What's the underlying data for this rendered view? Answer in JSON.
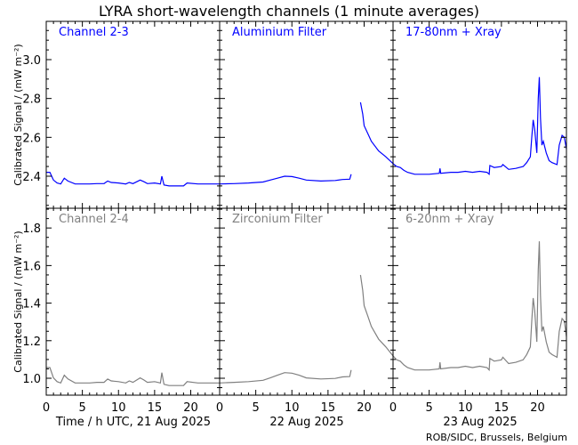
{
  "chart_data": {
    "type": "line",
    "title": "LYRA short-wavelength channels (1 minute averages)",
    "ylabel": "Calibrated Signal / (mW m⁻²)",
    "x_labels": [
      "Time / h UTC, 21 Aug 2025",
      "22 Aug 2025",
      "23 Aug 2025"
    ],
    "x_tick_labels": [
      "0",
      "5",
      "10",
      "15",
      "20"
    ],
    "x_range_hours": [
      0,
      72
    ],
    "credit": "ROB/SIDC, Brussels, Belgium",
    "colors": {
      "top": "#0000ff",
      "bottom": "#808080"
    },
    "rows": [
      {
        "panel_labels": [
          "Channel 2-3",
          "Aluminium Filter",
          "17-80nm + Xray"
        ],
        "color": "#0000ff",
        "ylim": [
          2.235,
          3.197
        ],
        "y_ticks": [
          "2.4",
          "2.6",
          "2.8",
          "3.0"
        ],
        "y_tick_values": [
          2.4,
          2.6,
          2.8,
          3.0
        ]
      },
      {
        "panel_labels": [
          "Channel 2-4",
          "Zirconium Filter",
          "6-20nm + Xray"
        ],
        "color": "#808080",
        "ylim": [
          0.91,
          1.905
        ],
        "y_ticks": [
          "1.0",
          "1.2",
          "1.4",
          "1.6",
          "1.8"
        ],
        "y_tick_values": [
          1.0,
          1.2,
          1.4,
          1.6,
          1.8
        ]
      }
    ],
    "hours": [
      0,
      0.5,
      1,
      1.5,
      2,
      2.5,
      3,
      4,
      6,
      7,
      8,
      8.5,
      9,
      10,
      11,
      11.5,
      12,
      13,
      13.5,
      14,
      15,
      15.8,
      16,
      16.3,
      17,
      19,
      19.5,
      21,
      24,
      26,
      28,
      30,
      31,
      32,
      33,
      34,
      35,
      36,
      38,
      40,
      41,
      42,
      42.2,
      43,
      43.5,
      43.8,
      44,
      44.5,
      45,
      46,
      47,
      48,
      48.5,
      49,
      49.5,
      50,
      51,
      53,
      54.4,
      54.5,
      54.6,
      56,
      57,
      58,
      59,
      60,
      61,
      61.3,
      61.4,
      62,
      63,
      63.2,
      64,
      65,
      66,
      66.5,
      67,
      67.2,
      67.4,
      67.6,
      67.9,
      68.1,
      68.25,
      68.4,
      68.6,
      68.8,
      69.2,
      69.6,
      70,
      70.7,
      71,
      71.4,
      71.7,
      72
    ],
    "series": [
      {
        "name": "Channel 2-3 / Aluminium / 17-80nm + Xray",
        "values": [
          2.42,
          2.42,
          2.38,
          2.365,
          2.36,
          2.39,
          2.375,
          2.36,
          2.36,
          2.362,
          2.362,
          2.375,
          2.368,
          2.365,
          2.36,
          2.368,
          2.362,
          2.38,
          2.372,
          2.362,
          2.365,
          2.36,
          2.4,
          2.355,
          2.35,
          2.35,
          2.365,
          2.36,
          2.36,
          2.362,
          2.365,
          2.37,
          2.38,
          2.39,
          2.4,
          2.398,
          2.39,
          2.38,
          2.375,
          2.378,
          2.383,
          2.385,
          2.41,
          null,
          2.78,
          2.72,
          2.66,
          2.62,
          2.58,
          2.53,
          2.5,
          2.465,
          2.45,
          2.445,
          2.43,
          2.42,
          2.41,
          2.41,
          2.415,
          2.44,
          2.415,
          2.42,
          2.42,
          2.425,
          2.42,
          2.425,
          2.42,
          2.41,
          2.455,
          2.445,
          2.45,
          2.46,
          2.435,
          2.44,
          2.45,
          2.47,
          2.5,
          2.6,
          2.69,
          2.64,
          2.52,
          2.8,
          2.91,
          2.7,
          2.56,
          2.58,
          2.52,
          2.48,
          2.47,
          2.46,
          2.56,
          2.61,
          2.6,
          2.54
        ]
      },
      {
        "name": "Channel 2-4 / Zirconium / 6-20nm + Xray",
        "values": [
          1.057,
          1.057,
          1.002,
          0.982,
          0.975,
          1.016,
          0.996,
          0.975,
          0.975,
          0.978,
          0.978,
          0.996,
          0.986,
          0.982,
          0.975,
          0.986,
          0.978,
          1.002,
          0.991,
          0.978,
          0.982,
          0.975,
          1.03,
          0.968,
          0.961,
          0.961,
          0.982,
          0.975,
          0.975,
          0.978,
          0.982,
          0.989,
          1.002,
          1.016,
          1.03,
          1.027,
          1.016,
          1.002,
          0.996,
          0.999,
          1.007,
          1.009,
          1.044,
          null,
          1.55,
          1.468,
          1.386,
          1.331,
          1.276,
          1.208,
          1.167,
          1.119,
          1.098,
          1.091,
          1.071,
          1.057,
          1.044,
          1.044,
          1.05,
          1.085,
          1.05,
          1.057,
          1.057,
          1.064,
          1.057,
          1.064,
          1.057,
          1.044,
          1.105,
          1.091,
          1.098,
          1.112,
          1.078,
          1.085,
          1.098,
          1.126,
          1.167,
          1.304,
          1.427,
          1.359,
          1.194,
          1.578,
          1.729,
          1.441,
          1.249,
          1.276,
          1.194,
          1.139,
          1.126,
          1.112,
          1.249,
          1.318,
          1.304,
          1.222
        ]
      }
    ]
  }
}
